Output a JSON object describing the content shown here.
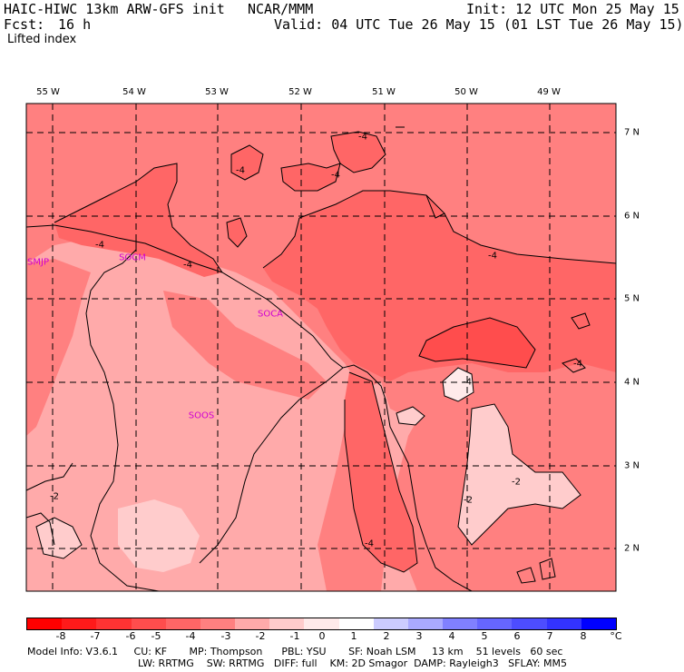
{
  "header": {
    "model": "HAIC-HIWC 13km ARW-GFS init",
    "org": "NCAR/MMM",
    "init": "Init: 12 UTC Mon 25 May 15",
    "fcst_label": "Fcst:",
    "fcst_value": "16 h",
    "valid": "Valid: 04 UTC Tue 26 May 15 (01 LST Tue 26 May 15)",
    "field": "Lifted index"
  },
  "map": {
    "longitudes": [
      "55 W",
      "54 W",
      "53 W",
      "52 W",
      "51 W",
      "50 W",
      "49 W"
    ],
    "latitudes": [
      "7 N",
      "6 N",
      "5 N",
      "4 N",
      "3 N",
      "2 N"
    ],
    "stations": [
      "SMJP",
      "SOCM",
      "SOCA",
      "SOOS"
    ],
    "contour_labels": [
      "-4",
      "-4",
      "-4",
      "-4",
      "-4",
      "-4",
      "-4",
      "-4",
      "-4",
      "-2",
      "-2",
      "-2"
    ],
    "colors": {
      "c_m8": "#ff0000",
      "c_m7": "#ff1a1a",
      "c_m6": "#ff3333",
      "c_m5": "#ff4d4d",
      "c_m4": "#ff6666",
      "c_m3": "#ff8080",
      "c_m2": "#ffaaaa",
      "c_m1": "#ffcccc",
      "c_0": "#ffeaea",
      "c_1": "#ffffff",
      "c_2": "#ccccff",
      "c_3": "#aaaaff",
      "c_4": "#8080ff",
      "c_5": "#6666ff",
      "c_6": "#4d4dff",
      "c_7": "#3333ff",
      "c_8": "#0000ff"
    }
  },
  "scale": {
    "ticks": [
      "-8",
      "-7",
      "-6",
      "-5",
      "-4",
      "-3",
      "-2",
      "-1",
      "0",
      "1",
      "2",
      "3",
      "4",
      "5",
      "6",
      "7",
      "8"
    ],
    "unit": "°C"
  },
  "footer": {
    "line1": "Model Info: V3.6.1     CU: KF       MP: Thompson      PBL: YSU       SF: Noah LSM     13 km    51 levels   60 sec",
    "line2": "LW: RRTMG    SW: RRTMG   DIFF: full    KM: 2D Smagor  DAMP: Rayleigh3   SFLAY: MM5"
  }
}
